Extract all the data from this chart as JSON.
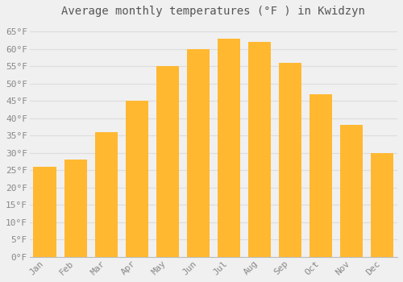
{
  "title": "Average monthly temperatures (°F ) in Kwidzyn",
  "months": [
    "Jan",
    "Feb",
    "Mar",
    "Apr",
    "May",
    "Jun",
    "Jul",
    "Aug",
    "Sep",
    "Oct",
    "Nov",
    "Dec"
  ],
  "values": [
    26,
    28,
    36,
    45,
    55,
    60,
    63,
    62,
    56,
    47,
    38,
    30
  ],
  "bar_color_top": "#FFB830",
  "bar_color_bottom": "#FFA010",
  "background_color": "#F0F0F0",
  "plot_bg_color": "#F0F0F0",
  "grid_color": "#DDDDDD",
  "text_color": "#888888",
  "title_color": "#555555",
  "ylim": [
    0,
    68
  ],
  "yticks": [
    0,
    5,
    10,
    15,
    20,
    25,
    30,
    35,
    40,
    45,
    50,
    55,
    60,
    65
  ],
  "title_fontsize": 10,
  "tick_fontsize": 8,
  "bar_width": 0.75
}
